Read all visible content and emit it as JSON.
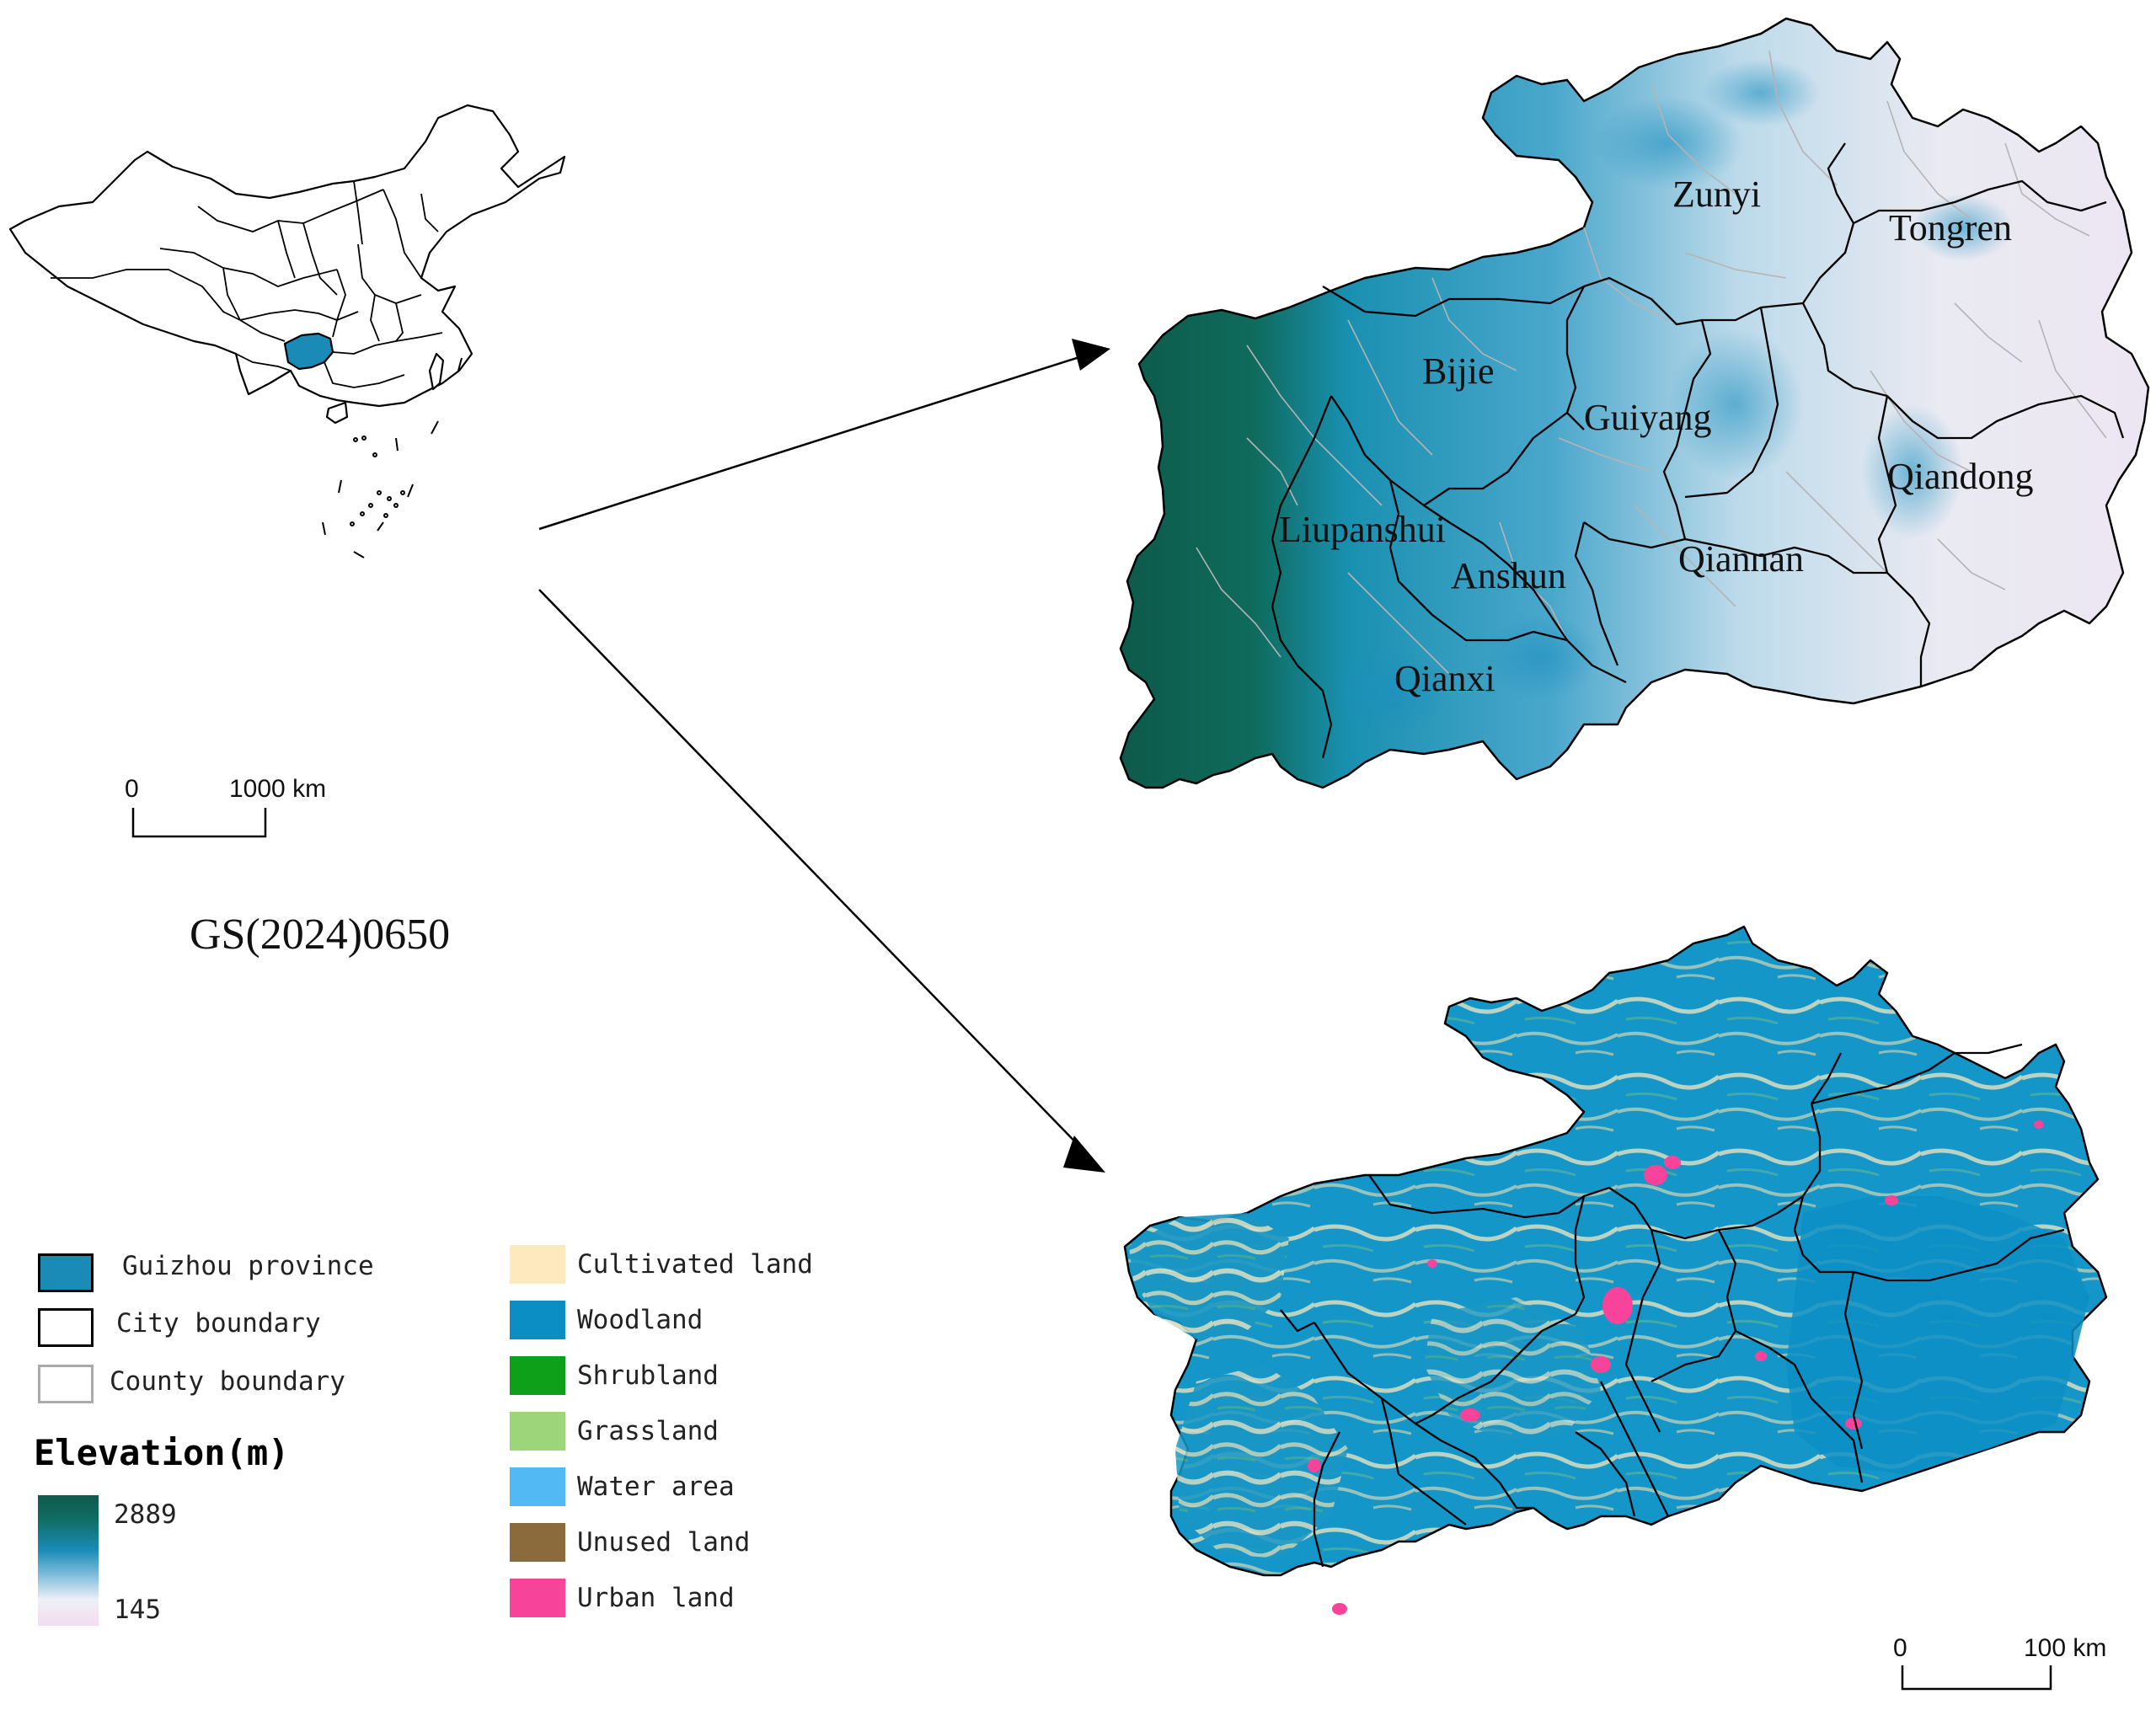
{
  "china_map": {
    "scale_zero": "0",
    "scale_label": "1000 km",
    "review_number": "GS(2024)0650"
  },
  "elevation_map": {
    "city_labels": [
      "Zunyi",
      "Tongren",
      "Bijie",
      "Guiyang",
      "Qiandong",
      "Liupanshui",
      "Anshun",
      "Qiannan",
      "Qianxi"
    ]
  },
  "landuse_map": {
    "scale_zero": "0",
    "scale_label": "100 km"
  },
  "legend": {
    "boundaries": [
      {
        "label": "Guizhou province",
        "color": "#1a8bb6"
      },
      {
        "label": "City boundary",
        "color": "#000000"
      },
      {
        "label": "County boundary",
        "color": "#aaaaaa"
      }
    ],
    "elevation_title": "Elevation(m)",
    "elevation_max": "2889",
    "elevation_min": "145",
    "elevation_colors": [
      "#0d5a4a",
      "#1a8bb6",
      "#ffffff",
      "#f3d9ef"
    ],
    "landuse": [
      {
        "label": "Cultivated land",
        "color": "#fde9bd"
      },
      {
        "label": "Woodland",
        "color": "#0a8ec4"
      },
      {
        "label": "Shrubland",
        "color": "#0ea018"
      },
      {
        "label": "Grassland",
        "color": "#9dd67a"
      },
      {
        "label": "Water area",
        "color": "#53b9f5"
      },
      {
        "label": "Unused land",
        "color": "#8b6a3b"
      },
      {
        "label": "Urban land",
        "color": "#f7439a"
      }
    ]
  }
}
